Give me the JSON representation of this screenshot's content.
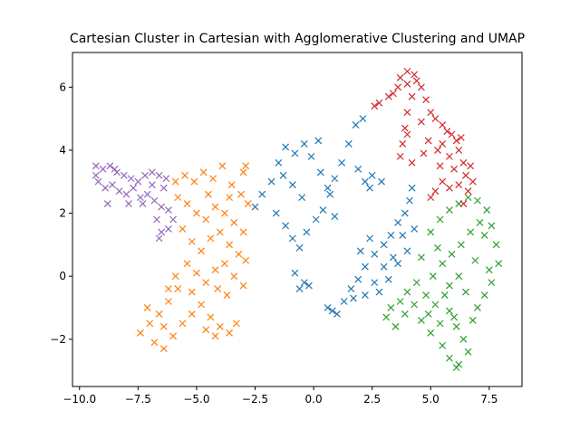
{
  "chart_data": {
    "type": "scatter",
    "title": "Cartesian Cluster in Cartesian with Agglomerative Clustering and UMAP",
    "xlabel": "",
    "ylabel": "",
    "xlim": [
      -10.3,
      8.9
    ],
    "ylim": [
      -3.5,
      7.1
    ],
    "x_ticks": [
      -10.0,
      -7.5,
      -5.0,
      -2.5,
      0.0,
      2.5,
      5.0,
      7.5
    ],
    "x_tick_labels": [
      "−10.0",
      "−7.5",
      "−5.0",
      "−2.5",
      "0.0",
      "2.5",
      "5.0",
      "7.5"
    ],
    "y_ticks": [
      -2,
      0,
      2,
      4,
      6
    ],
    "y_tick_labels": [
      "−2",
      "0",
      "2",
      "4",
      "6"
    ],
    "grid": false,
    "legend": "none",
    "marker": "x",
    "series": [
      {
        "color": "#1f77b4",
        "points": [
          [
            -2.5,
            2.2
          ],
          [
            -2.2,
            2.6
          ],
          [
            -1.8,
            3.0
          ],
          [
            -1.5,
            3.6
          ],
          [
            -1.2,
            4.1
          ],
          [
            -0.8,
            3.9
          ],
          [
            -0.4,
            4.2
          ],
          [
            -0.1,
            3.8
          ],
          [
            0.2,
            4.3
          ],
          [
            -1.6,
            2.0
          ],
          [
            -1.2,
            1.6
          ],
          [
            -0.9,
            1.2
          ],
          [
            -0.6,
            0.9
          ],
          [
            -0.3,
            1.4
          ],
          [
            0.1,
            1.8
          ],
          [
            0.4,
            2.1
          ],
          [
            0.7,
            2.6
          ],
          [
            0.9,
            3.1
          ],
          [
            1.2,
            3.6
          ],
          [
            1.5,
            4.2
          ],
          [
            1.8,
            4.8
          ],
          [
            2.1,
            5.0
          ],
          [
            -0.5,
            2.5
          ],
          [
            -0.9,
            2.9
          ],
          [
            -1.3,
            3.2
          ],
          [
            0.3,
            3.3
          ],
          [
            0.6,
            2.8
          ],
          [
            0.9,
            1.9
          ],
          [
            -0.4,
            -0.2
          ],
          [
            -0.6,
            -0.4
          ],
          [
            -0.2,
            -0.3
          ],
          [
            -0.8,
            0.1
          ],
          [
            2.2,
            3.0
          ],
          [
            2.5,
            3.2
          ],
          [
            2.9,
            3.0
          ],
          [
            2.4,
            2.8
          ],
          [
            1.9,
            3.4
          ],
          [
            1.0,
            -1.2
          ],
          [
            1.3,
            -0.8
          ],
          [
            1.6,
            -0.4
          ],
          [
            1.9,
            -0.1
          ],
          [
            2.2,
            0.3
          ],
          [
            2.6,
            0.7
          ],
          [
            3.0,
            1.0
          ],
          [
            3.3,
            1.3
          ],
          [
            3.6,
            1.7
          ],
          [
            3.9,
            2.0
          ],
          [
            4.1,
            2.4
          ],
          [
            4.2,
            2.8
          ],
          [
            3.8,
            1.3
          ],
          [
            3.4,
            0.6
          ],
          [
            3.0,
            0.3
          ],
          [
            2.6,
            -0.2
          ],
          [
            2.2,
            -0.6
          ],
          [
            1.7,
            -0.7
          ],
          [
            2.8,
            -0.5
          ],
          [
            3.2,
            -0.1
          ],
          [
            3.6,
            0.4
          ],
          [
            4.0,
            0.8
          ],
          [
            4.3,
            1.5
          ],
          [
            2.0,
            0.8
          ],
          [
            2.4,
            1.2
          ],
          [
            0.6,
            -1.0
          ],
          [
            0.8,
            -1.1
          ]
        ]
      },
      {
        "color": "#ff7f0e",
        "points": [
          [
            -5.9,
            3.0
          ],
          [
            -5.5,
            3.2
          ],
          [
            -5.1,
            3.0
          ],
          [
            -4.7,
            3.3
          ],
          [
            -4.3,
            3.1
          ],
          [
            -3.9,
            3.5
          ],
          [
            -3.5,
            2.9
          ],
          [
            -3.1,
            2.6
          ],
          [
            -2.8,
            2.3
          ],
          [
            -3.0,
            3.3
          ],
          [
            -5.8,
            2.5
          ],
          [
            -5.4,
            2.3
          ],
          [
            -5.0,
            2.0
          ],
          [
            -4.6,
            1.8
          ],
          [
            -4.2,
            2.2
          ],
          [
            -3.8,
            2.0
          ],
          [
            -3.4,
            1.7
          ],
          [
            -3.0,
            1.4
          ],
          [
            -5.6,
            1.5
          ],
          [
            -5.2,
            1.1
          ],
          [
            -4.8,
            0.8
          ],
          [
            -4.4,
            1.2
          ],
          [
            -4.0,
            1.4
          ],
          [
            -3.6,
            1.0
          ],
          [
            -3.2,
            0.7
          ],
          [
            -2.9,
            0.5
          ],
          [
            -5.4,
            0.4
          ],
          [
            -5.0,
            0.1
          ],
          [
            -4.6,
            -0.2
          ],
          [
            -4.2,
            0.2
          ],
          [
            -3.8,
            0.4
          ],
          [
            -3.4,
            0.0
          ],
          [
            -3.0,
            -0.3
          ],
          [
            -5.8,
            -0.4
          ],
          [
            -6.2,
            -0.8
          ],
          [
            -6.6,
            -1.2
          ],
          [
            -7.0,
            -1.5
          ],
          [
            -7.4,
            -1.8
          ],
          [
            -6.8,
            -2.1
          ],
          [
            -6.4,
            -2.3
          ],
          [
            -6.0,
            -1.9
          ],
          [
            -5.6,
            -1.5
          ],
          [
            -5.2,
            -1.2
          ],
          [
            -4.8,
            -0.9
          ],
          [
            -4.4,
            -1.3
          ],
          [
            -4.0,
            -1.6
          ],
          [
            -3.6,
            -1.8
          ],
          [
            -3.3,
            -1.5
          ],
          [
            -4.2,
            -1.9
          ],
          [
            -4.6,
            -1.7
          ],
          [
            -6.2,
            -0.4
          ],
          [
            -5.9,
            0.0
          ],
          [
            -6.4,
            -1.6
          ],
          [
            -7.1,
            -1.0
          ],
          [
            -2.9,
            3.5
          ],
          [
            -4.5,
            2.6
          ],
          [
            -3.6,
            2.5
          ],
          [
            -5.2,
            -0.5
          ],
          [
            -3.7,
            -0.6
          ],
          [
            -4.1,
            -0.4
          ]
        ]
      },
      {
        "color": "#2ca02c",
        "points": [
          [
            3.1,
            -1.3
          ],
          [
            3.5,
            -1.6
          ],
          [
            3.9,
            -1.2
          ],
          [
            4.3,
            -0.9
          ],
          [
            4.6,
            -1.4
          ],
          [
            5.0,
            -1.8
          ],
          [
            5.4,
            -1.5
          ],
          [
            5.8,
            -1.1
          ],
          [
            6.1,
            -1.6
          ],
          [
            6.4,
            -2.0
          ],
          [
            6.6,
            -2.4
          ],
          [
            6.2,
            -2.8
          ],
          [
            5.8,
            -2.6
          ],
          [
            5.5,
            -2.2
          ],
          [
            4.8,
            -0.6
          ],
          [
            4.4,
            -0.2
          ],
          [
            4.0,
            -0.5
          ],
          [
            3.7,
            -0.8
          ],
          [
            5.1,
            0.0
          ],
          [
            5.5,
            0.4
          ],
          [
            5.9,
            0.7
          ],
          [
            6.3,
            1.0
          ],
          [
            6.7,
            1.4
          ],
          [
            7.1,
            1.7
          ],
          [
            7.4,
            2.1
          ],
          [
            7.6,
            1.6
          ],
          [
            7.8,
            1.0
          ],
          [
            7.9,
            0.4
          ],
          [
            7.6,
            -0.2
          ],
          [
            7.3,
            -0.6
          ],
          [
            7.0,
            -1.0
          ],
          [
            6.8,
            -1.4
          ],
          [
            6.5,
            -0.5
          ],
          [
            6.2,
            0.0
          ],
          [
            5.8,
            -0.3
          ],
          [
            5.3,
            0.9
          ],
          [
            5.0,
            1.4
          ],
          [
            5.4,
            1.8
          ],
          [
            5.8,
            2.1
          ],
          [
            6.2,
            2.3
          ],
          [
            6.6,
            2.5
          ],
          [
            7.0,
            2.4
          ],
          [
            7.3,
            1.3
          ],
          [
            6.9,
            0.5
          ],
          [
            4.6,
            0.6
          ],
          [
            5.2,
            -0.9
          ],
          [
            5.6,
            -0.6
          ],
          [
            6.0,
            -1.3
          ],
          [
            3.3,
            -1.0
          ],
          [
            6.1,
            -2.9
          ],
          [
            7.5,
            0.2
          ],
          [
            4.9,
            -1.2
          ]
        ]
      },
      {
        "color": "#d62728",
        "points": [
          [
            3.7,
            6.3
          ],
          [
            4.0,
            6.5
          ],
          [
            4.3,
            6.4
          ],
          [
            4.6,
            6.0
          ],
          [
            3.6,
            6.0
          ],
          [
            3.2,
            5.7
          ],
          [
            2.8,
            5.5
          ],
          [
            2.6,
            5.4
          ],
          [
            4.0,
            6.1
          ],
          [
            4.2,
            5.7
          ],
          [
            4.0,
            5.2
          ],
          [
            3.9,
            4.7
          ],
          [
            3.8,
            4.2
          ],
          [
            3.7,
            3.8
          ],
          [
            4.2,
            3.6
          ],
          [
            4.0,
            4.5
          ],
          [
            4.8,
            5.6
          ],
          [
            5.0,
            5.2
          ],
          [
            5.2,
            5.0
          ],
          [
            5.5,
            4.8
          ],
          [
            5.7,
            4.6
          ],
          [
            5.9,
            4.5
          ],
          [
            6.1,
            4.3
          ],
          [
            6.2,
            4.0
          ],
          [
            6.4,
            3.6
          ],
          [
            6.5,
            3.2
          ],
          [
            6.6,
            2.7
          ],
          [
            6.4,
            2.3
          ],
          [
            5.8,
            2.8
          ],
          [
            5.5,
            3.0
          ],
          [
            5.2,
            2.7
          ],
          [
            5.0,
            2.5
          ],
          [
            5.4,
            3.5
          ],
          [
            5.3,
            4.0
          ],
          [
            5.5,
            4.2
          ],
          [
            5.8,
            3.8
          ],
          [
            6.0,
            3.4
          ],
          [
            6.2,
            2.9
          ],
          [
            4.9,
            4.3
          ],
          [
            4.7,
            3.9
          ],
          [
            4.6,
            4.9
          ],
          [
            6.7,
            3.5
          ],
          [
            6.8,
            3.0
          ],
          [
            4.4,
            6.2
          ],
          [
            3.4,
            5.8
          ],
          [
            6.3,
            4.4
          ]
        ]
      },
      {
        "color": "#9467bd",
        "points": [
          [
            -9.3,
            3.5
          ],
          [
            -9.0,
            3.4
          ],
          [
            -8.7,
            3.5
          ],
          [
            -8.4,
            3.3
          ],
          [
            -8.1,
            3.2
          ],
          [
            -7.8,
            3.1
          ],
          [
            -7.5,
            3.0
          ],
          [
            -7.2,
            3.2
          ],
          [
            -6.9,
            3.3
          ],
          [
            -6.6,
            3.2
          ],
          [
            -6.3,
            3.1
          ],
          [
            -9.2,
            3.0
          ],
          [
            -8.9,
            2.8
          ],
          [
            -8.6,
            2.9
          ],
          [
            -8.3,
            2.7
          ],
          [
            -8.0,
            2.6
          ],
          [
            -7.7,
            2.8
          ],
          [
            -7.4,
            2.5
          ],
          [
            -7.1,
            2.6
          ],
          [
            -6.8,
            2.4
          ],
          [
            -6.5,
            2.2
          ],
          [
            -6.2,
            2.1
          ],
          [
            -6.0,
            1.8
          ],
          [
            -6.2,
            1.5
          ],
          [
            -6.5,
            1.4
          ],
          [
            -6.6,
            1.2
          ],
          [
            -8.8,
            2.3
          ],
          [
            -7.9,
            2.3
          ],
          [
            -6.9,
            2.9
          ],
          [
            -6.4,
            2.8
          ],
          [
            -8.5,
            3.4
          ],
          [
            -7.3,
            2.3
          ],
          [
            -9.3,
            3.2
          ],
          [
            -6.7,
            1.8
          ]
        ]
      }
    ]
  }
}
